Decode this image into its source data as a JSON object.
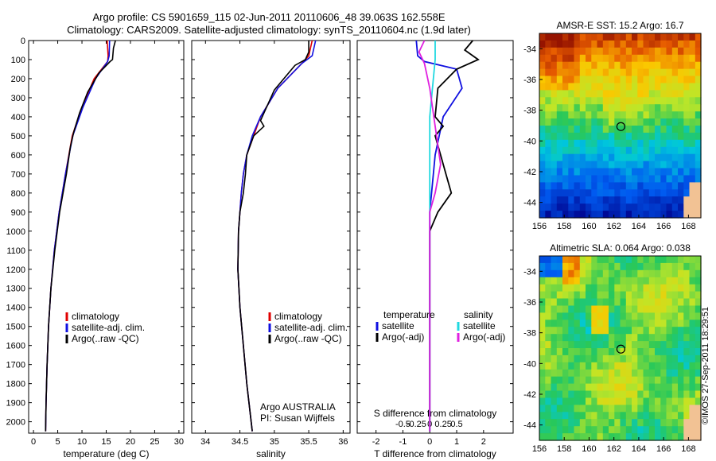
{
  "figure": {
    "title_line1": "Argo profile: CS 5901659_115 02-Jun-2011 20110606_48 39.063S 162.558E",
    "title_line2": "Climatology: CARS2009. Satellite-adjusted climatology: synTS_20110604.nc (1.9d later)",
    "credit": "©IMOS 27-Sep-2011 18:29:51"
  },
  "colors": {
    "climatology": "#e00000",
    "satellite": "#1010e0",
    "argo": "#000000",
    "salinity_satellite": "#20d8e0",
    "salinity_argo": "#e020e0"
  },
  "chart_data": [
    {
      "type": "line",
      "panel": "temperature",
      "xlabel": "temperature (deg C)",
      "ylabel": "",
      "xlim": [
        -1,
        31
      ],
      "ylim": [
        2060,
        0
      ],
      "y_reversed": true,
      "xticks": [
        "0",
        "5",
        "10",
        "15",
        "20",
        "25",
        "30"
      ],
      "xtick_values": [
        0,
        5,
        10,
        15,
        20,
        25,
        30
      ],
      "yticks": [
        "0",
        "100",
        "200",
        "300",
        "400",
        "500",
        "600",
        "700",
        "800",
        "900",
        "1000",
        "1100",
        "1200",
        "1300",
        "1400",
        "1500",
        "1600",
        "1700",
        "1800",
        "1900",
        "2000"
      ],
      "ytick_values": [
        0,
        100,
        200,
        300,
        400,
        500,
        600,
        700,
        800,
        900,
        1000,
        1100,
        1200,
        1300,
        1400,
        1500,
        1600,
        1700,
        1800,
        1900,
        2000
      ],
      "legend": [
        "climatology",
        "satellite-adj. clim.",
        "Argo(..raw -QC)"
      ],
      "series": [
        {
          "name": "climatology",
          "color": "#e00000",
          "points": [
            [
              15.2,
              0
            ],
            [
              15.4,
              80
            ],
            [
              15.3,
              110
            ],
            [
              12.5,
              200
            ],
            [
              10,
              350
            ],
            [
              8,
              500
            ],
            [
              6.6,
              700
            ],
            [
              5.3,
              900
            ],
            [
              4.3,
              1100
            ],
            [
              3.6,
              1300
            ],
            [
              3.1,
              1500
            ],
            [
              2.8,
              1700
            ],
            [
              2.6,
              1900
            ],
            [
              2.5,
              2050
            ]
          ]
        },
        {
          "name": "satellite-adj. clim.",
          "color": "#1010e0",
          "points": [
            [
              15.7,
              0
            ],
            [
              15.6,
              80
            ],
            [
              15.3,
              110
            ],
            [
              12.8,
              200
            ],
            [
              10.2,
              350
            ],
            [
              8.1,
              500
            ],
            [
              6.6,
              700
            ],
            [
              5.3,
              900
            ],
            [
              4.3,
              1100
            ],
            [
              3.6,
              1300
            ],
            [
              3.1,
              1500
            ],
            [
              2.8,
              1700
            ],
            [
              2.6,
              1900
            ],
            [
              2.5,
              2050
            ]
          ]
        },
        {
          "name": "Argo(..raw -QC)",
          "color": "#000000",
          "points": [
            [
              16.9,
              0
            ],
            [
              16.5,
              40
            ],
            [
              16.3,
              100
            ],
            [
              15.8,
              110
            ],
            [
              13.5,
              170
            ],
            [
              11.2,
              270
            ],
            [
              9.5,
              380
            ],
            [
              8.3,
              480
            ],
            [
              7.6,
              560
            ],
            [
              6.8,
              700
            ],
            [
              5.4,
              900
            ],
            [
              4.4,
              1100
            ],
            [
              3.6,
              1300
            ],
            [
              3.1,
              1500
            ],
            [
              2.8,
              1700
            ],
            [
              2.6,
              1900
            ],
            [
              2.5,
              2050
            ]
          ]
        }
      ]
    },
    {
      "type": "line",
      "panel": "salinity",
      "xlabel": "salinity",
      "ylabel": "",
      "xlim": [
        33.8,
        36.1
      ],
      "ylim": [
        2060,
        0
      ],
      "y_reversed": true,
      "xticks": [
        "34",
        "34.5",
        "35",
        "35.5",
        "36"
      ],
      "xtick_values": [
        34,
        34.5,
        35,
        35.5,
        36
      ],
      "legend": [
        "climatology",
        "satellite-adj. clim.",
        "Argo(..raw -QC)"
      ],
      "annotation": [
        "Argo AUSTRALIA",
        "PI: Susan Wijffels"
      ],
      "series": [
        {
          "name": "climatology",
          "color": "#e00000",
          "points": [
            [
              35.55,
              0
            ],
            [
              35.5,
              80
            ],
            [
              35.4,
              120
            ],
            [
              35.05,
              250
            ],
            [
              34.8,
              400
            ],
            [
              34.7,
              500
            ],
            [
              34.6,
              600
            ],
            [
              34.55,
              700
            ],
            [
              34.52,
              800
            ],
            [
              34.5,
              900
            ],
            [
              34.48,
              1000
            ],
            [
              34.47,
              1200
            ],
            [
              34.5,
              1400
            ],
            [
              34.55,
              1600
            ],
            [
              34.6,
              1800
            ],
            [
              34.68,
              2050
            ]
          ]
        },
        {
          "name": "satellite-adj. clim.",
          "color": "#1010e0",
          "points": [
            [
              35.6,
              0
            ],
            [
              35.55,
              80
            ],
            [
              35.4,
              120
            ],
            [
              35.05,
              250
            ],
            [
              34.8,
              400
            ],
            [
              34.68,
              500
            ],
            [
              34.6,
              600
            ],
            [
              34.55,
              700
            ],
            [
              34.52,
              800
            ],
            [
              34.5,
              900
            ],
            [
              34.48,
              1000
            ],
            [
              34.47,
              1200
            ],
            [
              34.5,
              1400
            ],
            [
              34.55,
              1600
            ],
            [
              34.6,
              1800
            ],
            [
              34.68,
              2050
            ]
          ]
        },
        {
          "name": "Argo(..raw -QC)",
          "color": "#000000",
          "points": [
            [
              35.5,
              0
            ],
            [
              35.5,
              60
            ],
            [
              35.45,
              100
            ],
            [
              35.3,
              130
            ],
            [
              35.0,
              260
            ],
            [
              34.8,
              420
            ],
            [
              34.85,
              450
            ],
            [
              34.7,
              500
            ],
            [
              34.6,
              600
            ],
            [
              34.58,
              700
            ],
            [
              34.55,
              800
            ],
            [
              34.5,
              900
            ],
            [
              34.48,
              1000
            ],
            [
              34.47,
              1200
            ],
            [
              34.5,
              1400
            ],
            [
              34.55,
              1600
            ],
            [
              34.6,
              1800
            ],
            [
              34.68,
              2050
            ]
          ]
        }
      ]
    },
    {
      "type": "line",
      "panel": "difference",
      "xlabel": "T difference from climatology",
      "xlabel_top": "S difference from climatology",
      "xlim": [
        -2.7,
        3.1
      ],
      "ylim": [
        2060,
        0
      ],
      "y_reversed": true,
      "xticks": [
        "-2",
        "-1",
        "0",
        "1",
        "2"
      ],
      "xtick_values": [
        -2,
        -1,
        0,
        1,
        2
      ],
      "xticks_s": [
        "-0.5",
        "-0.25",
        "0",
        "0.25",
        "0.5"
      ],
      "xtick_values_s": [
        -0.5,
        -0.25,
        0,
        0.25,
        0.5
      ],
      "legend_headers": [
        "temperature",
        "salinity"
      ],
      "legend_temperature": [
        "satellite",
        "Argo(-adj)"
      ],
      "legend_salinity": [
        "satellite",
        "Argo(-adj)"
      ],
      "series": [
        {
          "name": "T satellite",
          "color": "#1010e0",
          "points": [
            [
              -0.5,
              0
            ],
            [
              -0.45,
              80
            ],
            [
              -0.2,
              110
            ],
            [
              1.0,
              150
            ],
            [
              1.2,
              250
            ],
            [
              0.5,
              400
            ],
            [
              0.2,
              600
            ],
            [
              0.0,
              900
            ],
            [
              0.0,
              2050
            ]
          ]
        },
        {
          "name": "T Argo(-adj)",
          "color": "#000000",
          "points": [
            [
              1.6,
              0
            ],
            [
              1.3,
              50
            ],
            [
              1.8,
              100
            ],
            [
              1.0,
              150
            ],
            [
              0.3,
              250
            ],
            [
              0.2,
              400
            ],
            [
              0.5,
              450
            ],
            [
              0.2,
              500
            ],
            [
              0.4,
              600
            ],
            [
              0.6,
              700
            ],
            [
              0.8,
              800
            ],
            [
              0.3,
              900
            ],
            [
              0.0,
              1000
            ],
            [
              0.0,
              2050
            ]
          ]
        },
        {
          "name": "S satellite",
          "color": "#20d8e0",
          "points": [
            [
              0.05,
              0
            ],
            [
              0.05,
              100
            ],
            [
              0.0,
              400
            ],
            [
              0.0,
              2050
            ]
          ]
        },
        {
          "name": "S Argo(-adj)",
          "color": "#e020e0",
          "points": [
            [
              -0.05,
              0
            ],
            [
              -0.1,
              60
            ],
            [
              -0.05,
              120
            ],
            [
              0.0,
              250
            ],
            [
              0.05,
              450
            ],
            [
              0.1,
              650
            ],
            [
              0.05,
              800
            ],
            [
              0.0,
              900
            ],
            [
              0.0,
              2050
            ]
          ]
        }
      ]
    },
    {
      "type": "heatmap",
      "panel": "sst_map",
      "title": "AMSR-E SST: 15.2 Argo: 16.7",
      "xlim": [
        156,
        169
      ],
      "ylim": [
        -45,
        -33
      ],
      "xticks": [
        "156",
        "158",
        "160",
        "162",
        "164",
        "166",
        "168"
      ],
      "yticks": [
        "-34",
        "-36",
        "-38",
        "-40",
        "-42",
        "-44"
      ],
      "marker_lon": 162.558,
      "marker_lat": -39.063
    },
    {
      "type": "heatmap",
      "panel": "sla_map",
      "title": "Altimetric SLA: 0.064 Argo: 0.038",
      "xlim": [
        156,
        169
      ],
      "ylim": [
        -45,
        -33
      ],
      "xticks": [
        "156",
        "158",
        "160",
        "162",
        "164",
        "166",
        "168"
      ],
      "yticks": [
        "-34",
        "-36",
        "-38",
        "-40",
        "-42",
        "-44"
      ],
      "marker_lon": 162.558,
      "marker_lat": -39.063
    }
  ]
}
